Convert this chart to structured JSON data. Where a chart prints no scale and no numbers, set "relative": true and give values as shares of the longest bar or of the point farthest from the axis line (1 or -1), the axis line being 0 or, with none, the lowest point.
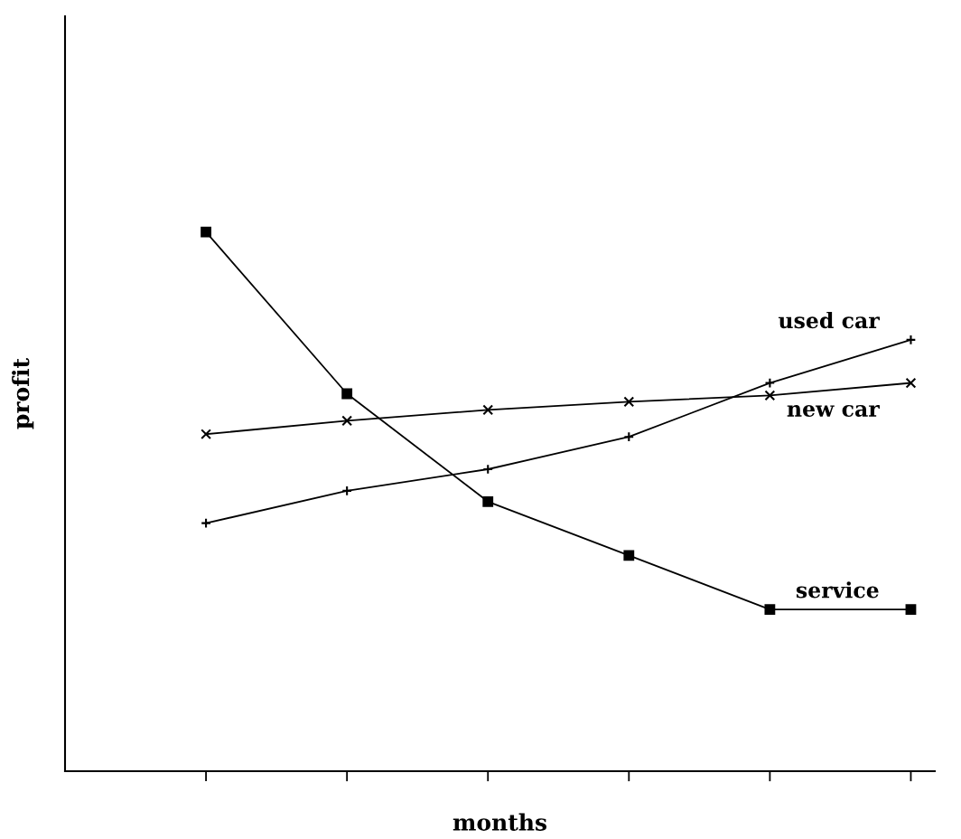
{
  "chart_data": {
    "type": "line",
    "xlabel": "months",
    "ylabel": "profit",
    "relative": true,
    "categories": [
      null,
      null,
      null,
      null,
      null,
      null
    ],
    "series": [
      {
        "name": "service",
        "color": "#000000",
        "marker": "square",
        "values": [
          1,
          0.7,
          0.5,
          0.4,
          0.3,
          0.3
        ]
      },
      {
        "name": "new car",
        "color": "#000000",
        "marker": "cross",
        "values": [
          0.625,
          0.65,
          0.67,
          0.685,
          0.697,
          0.72
        ]
      },
      {
        "name": "used car",
        "color": "#000000",
        "marker": "cross",
        "values": [
          0.46,
          0.52,
          0.56,
          0.62,
          0.72,
          0.8
        ]
      }
    ],
    "grid": false,
    "legend": false,
    "line_style": "solid"
  }
}
